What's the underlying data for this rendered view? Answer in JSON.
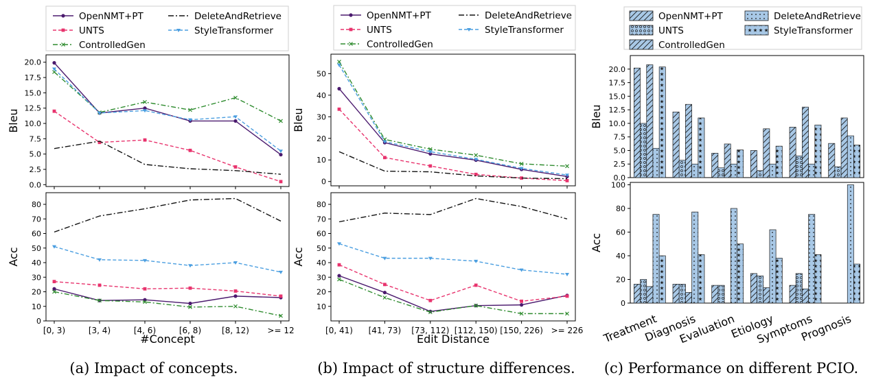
{
  "figure": {
    "captions": [
      "(a) Impact of concepts.",
      "(b) Impact of structure differences.",
      "(c) Performance on different PCIO."
    ]
  },
  "colors": {
    "OpenNMT+PT": "#4b1a6e",
    "UNTS": "#e8336d",
    "ControlledGen": "#2e8b2e",
    "DeleteAndRetrieve": "#111111",
    "StyleTransformer": "#4a9ee0",
    "bar_fill": "#a8c8e6"
  },
  "chart_data": [
    {
      "id": "a",
      "type": "line",
      "xlabel": "#Concept",
      "categories": [
        "[0, 3)",
        "[3, 4)",
        "[4, 6)",
        "[6, 8)",
        "[8, 12)",
        ">= 12"
      ],
      "legend": [
        "OpenNMT+PT",
        "DeleteAndRetrieve",
        "UNTS",
        "StyleTransformer",
        "ControlledGen"
      ],
      "panels": [
        {
          "ylabel": "Bleu",
          "ylim": [
            -0.3,
            21.2
          ],
          "yticks": [
            "0.0",
            "2.5",
            "5.0",
            "7.5",
            "10.0",
            "12.5",
            "15.0",
            "17.5",
            "20.0"
          ],
          "series": [
            {
              "name": "OpenNMT+PT",
              "values": [
                19.9,
                11.7,
                12.5,
                10.4,
                10.4,
                4.9
              ]
            },
            {
              "name": "UNTS",
              "values": [
                12.0,
                6.9,
                7.3,
                5.6,
                2.9,
                0.5
              ]
            },
            {
              "name": "ControlledGen",
              "values": [
                18.4,
                11.8,
                13.5,
                12.2,
                14.2,
                10.4
              ]
            },
            {
              "name": "DeleteAndRetrieve",
              "values": [
                5.9,
                7.1,
                3.3,
                2.6,
                2.3,
                1.7
              ]
            },
            {
              "name": "StyleTransformer",
              "values": [
                18.9,
                11.7,
                12.1,
                10.6,
                11.1,
                5.5
              ]
            }
          ]
        },
        {
          "ylabel": "Acc",
          "ylim": [
            0,
            88
          ],
          "yticks": [
            "0",
            "10",
            "20",
            "30",
            "40",
            "50",
            "60",
            "70",
            "80"
          ],
          "series": [
            {
              "name": "OpenNMT+PT",
              "values": [
                22,
                14,
                14.5,
                12,
                17,
                16
              ]
            },
            {
              "name": "UNTS",
              "values": [
                27,
                24.5,
                22,
                22.5,
                20.5,
                17
              ]
            },
            {
              "name": "ControlledGen",
              "values": [
                20,
                14,
                13,
                9.5,
                10,
                3.5
              ]
            },
            {
              "name": "DeleteAndRetrieve",
              "values": [
                61,
                72,
                77,
                83,
                84,
                68.5
              ]
            },
            {
              "name": "StyleTransformer",
              "values": [
                51,
                42,
                41.5,
                38,
                40,
                33.5
              ]
            }
          ]
        }
      ]
    },
    {
      "id": "b",
      "type": "line",
      "xlabel": "Edit Distance",
      "categories": [
        "[0, 41)",
        "[41, 73)",
        "[73, 112)",
        "[112, 150)",
        "[150, 226)",
        ">= 226"
      ],
      "legend": [
        "OpenNMT+PT",
        "DeleteAndRetrieve",
        "UNTS",
        "StyleTransformer",
        "ControlledGen"
      ],
      "panels": [
        {
          "ylabel": "Bleu",
          "ylim": [
            -2,
            59
          ],
          "yticks": [
            "0",
            "10",
            "20",
            "30",
            "40",
            "50"
          ],
          "series": [
            {
              "name": "OpenNMT+PT",
              "values": [
                43,
                18,
                12.8,
                9.9,
                5.6,
                2.3
              ]
            },
            {
              "name": "UNTS",
              "values": [
                33.5,
                11.1,
                7.2,
                3.3,
                1.6,
                0.4
              ]
            },
            {
              "name": "ControlledGen",
              "values": [
                55.5,
                19.5,
                15,
                12.2,
                8.2,
                7.1
              ]
            },
            {
              "name": "DeleteAndRetrieve",
              "values": [
                13.8,
                4.8,
                4.5,
                2.6,
                1.6,
                1.3
              ]
            },
            {
              "name": "StyleTransformer",
              "values": [
                54,
                18.5,
                13.8,
                10.3,
                6.1,
                3.0
              ]
            }
          ]
        },
        {
          "ylabel": "Acc",
          "ylim": [
            0,
            88
          ],
          "yticks": [
            "10",
            "20",
            "30",
            "40",
            "50",
            "60",
            "70",
            "80"
          ],
          "series": [
            {
              "name": "OpenNMT+PT",
              "values": [
                31,
                19.5,
                6.5,
                10.5,
                11,
                17.5
              ]
            },
            {
              "name": "UNTS",
              "values": [
                38.5,
                25,
                14,
                24.5,
                13.5,
                17
              ]
            },
            {
              "name": "ControlledGen",
              "values": [
                28.5,
                16,
                6,
                10.5,
                5,
                5
              ]
            },
            {
              "name": "DeleteAndRetrieve",
              "values": [
                68,
                74,
                73,
                84,
                78.5,
                70
              ]
            },
            {
              "name": "StyleTransformer",
              "values": [
                53,
                43,
                43,
                41,
                35,
                32
              ]
            }
          ]
        }
      ]
    },
    {
      "id": "c",
      "type": "bar",
      "categories": [
        "Treatment",
        "Diagnosis",
        "Evaluation",
        "Etiology",
        "Symptoms",
        "Prognosis"
      ],
      "legend": [
        "OpenNMT+PT",
        "DeleteAndRetrieve",
        "UNTS",
        "StyleTransformer",
        "ControlledGen"
      ],
      "series_order": [
        "OpenNMT+PT",
        "UNTS",
        "ControlledGen",
        "DeleteAndRetrieve",
        "StyleTransformer"
      ],
      "hatches": {
        "OpenNMT+PT": "diag",
        "UNTS": "circle",
        "ControlledGen": "diag",
        "DeleteAndRetrieve": "dot",
        "StyleTransformer": "star"
      },
      "panels": [
        {
          "ylabel": "Bleu",
          "ylim": [
            0,
            22.5
          ],
          "yticks": [
            "0.0",
            "2.5",
            "5.0",
            "7.5",
            "10.0",
            "12.5",
            "15.0",
            "17.5",
            "20.0"
          ],
          "series": [
            {
              "name": "OpenNMT+PT",
              "values": [
                20.2,
                12.1,
                4.5,
                5.0,
                9.3,
                6.3
              ]
            },
            {
              "name": "UNTS",
              "values": [
                10.0,
                3.2,
                1.8,
                1.3,
                4.0,
                2.0
              ]
            },
            {
              "name": "ControlledGen",
              "values": [
                20.8,
                13.5,
                6.2,
                9.0,
                13.0,
                11.0
              ]
            },
            {
              "name": "DeleteAndRetrieve",
              "values": [
                5.4,
                2.5,
                2.5,
                2.5,
                2.5,
                7.7
              ]
            },
            {
              "name": "StyleTransformer",
              "values": [
                20.4,
                11.0,
                5.1,
                5.8,
                9.7,
                6.0
              ]
            }
          ]
        },
        {
          "ylabel": "Acc",
          "ylim": [
            0,
            102
          ],
          "yticks": [
            "0",
            "20",
            "40",
            "60",
            "80",
            "100"
          ],
          "series": [
            {
              "name": "OpenNMT+PT",
              "values": [
                16,
                16,
                15,
                25,
                15,
                0
              ]
            },
            {
              "name": "UNTS",
              "values": [
                20,
                16,
                15,
                23,
                25,
                0
              ]
            },
            {
              "name": "ControlledGen",
              "values": [
                14,
                9,
                0,
                13,
                12,
                0
              ]
            },
            {
              "name": "DeleteAndRetrieve",
              "values": [
                75,
                77,
                80,
                62,
                75,
                100
              ]
            },
            {
              "name": "StyleTransformer",
              "values": [
                40,
                41,
                50,
                38,
                41,
                33
              ]
            }
          ]
        }
      ]
    }
  ]
}
